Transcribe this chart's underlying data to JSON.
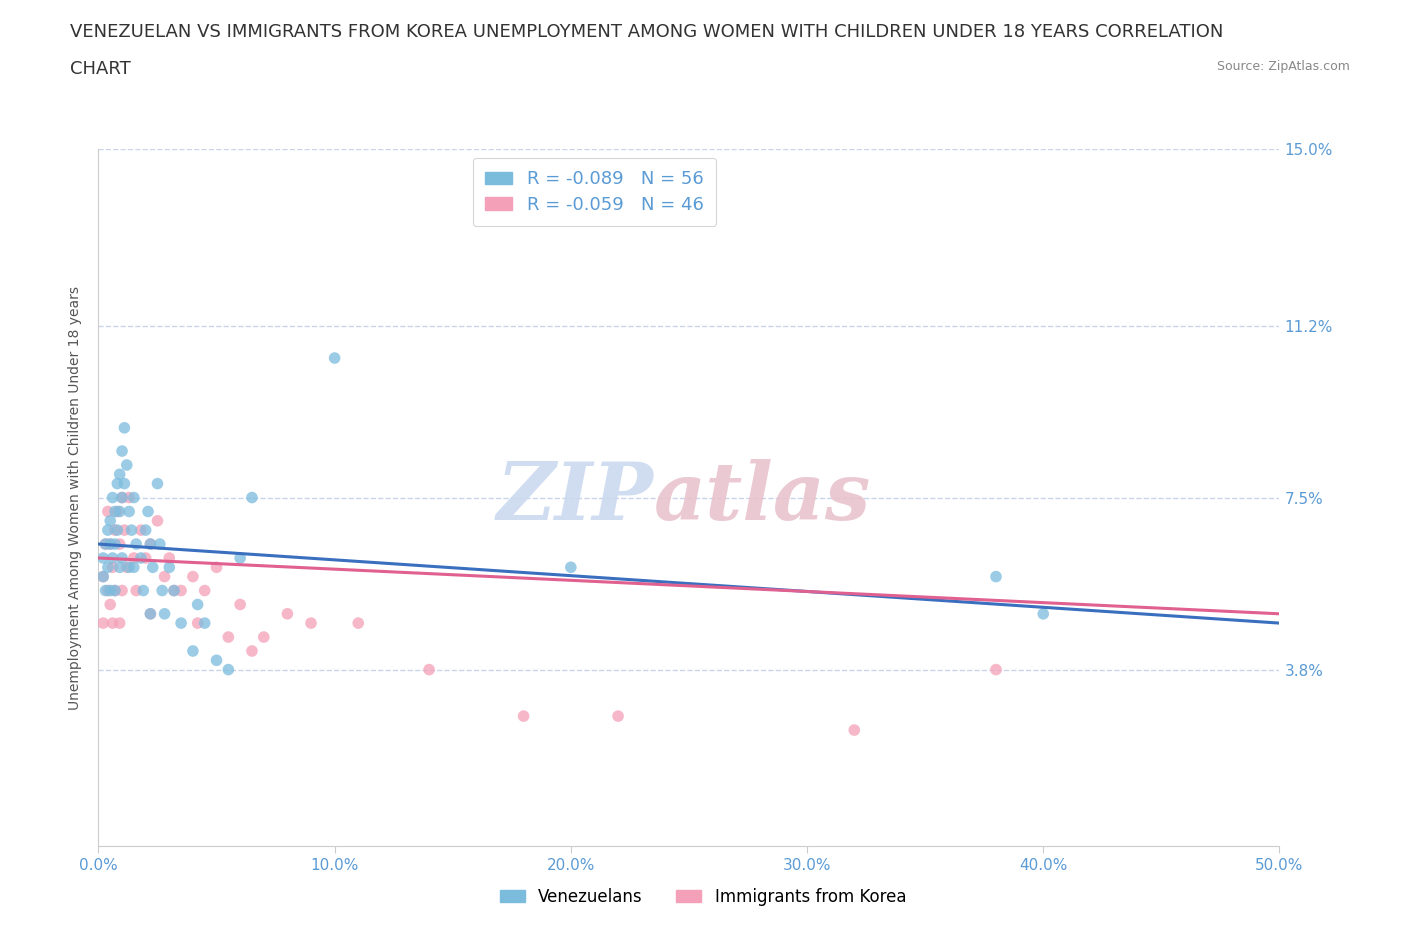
{
  "title_line1": "VENEZUELAN VS IMMIGRANTS FROM KOREA UNEMPLOYMENT AMONG WOMEN WITH CHILDREN UNDER 18 YEARS CORRELATION",
  "title_line2": "CHART",
  "source": "Source: ZipAtlas.com",
  "ylabel": "Unemployment Among Women with Children Under 18 years",
  "xlim": [
    0.0,
    0.5
  ],
  "ylim": [
    0.0,
    0.15
  ],
  "xticks": [
    0.0,
    0.1,
    0.2,
    0.3,
    0.4,
    0.5
  ],
  "xtick_labels": [
    "0.0%",
    "10.0%",
    "20.0%",
    "30.0%",
    "40.0%",
    "50.0%"
  ],
  "ytick_labels": [
    "3.8%",
    "7.5%",
    "11.2%",
    "15.0%"
  ],
  "ytick_values": [
    0.038,
    0.075,
    0.112,
    0.15
  ],
  "color_venezuelan": "#7bbcdd",
  "color_korea": "#f4a0b8",
  "color_trendline_venezuelan": "#3a6fbf",
  "color_trendline_korea": "#e06090",
  "color_gridline": "#c8d4e8",
  "legend_venezuelan": "R = -0.089   N = 56",
  "legend_korea": "R = -0.059   N = 46",
  "legend_label_venezuelan": "Venezuelans",
  "legend_label_korea": "Immigrants from Korea",
  "venezuelan_x": [
    0.002,
    0.002,
    0.003,
    0.003,
    0.004,
    0.004,
    0.005,
    0.005,
    0.005,
    0.006,
    0.006,
    0.007,
    0.007,
    0.007,
    0.008,
    0.008,
    0.009,
    0.009,
    0.009,
    0.01,
    0.01,
    0.01,
    0.011,
    0.011,
    0.012,
    0.013,
    0.013,
    0.014,
    0.015,
    0.015,
    0.016,
    0.018,
    0.019,
    0.02,
    0.021,
    0.022,
    0.022,
    0.023,
    0.025,
    0.026,
    0.027,
    0.028,
    0.03,
    0.032,
    0.035,
    0.04,
    0.042,
    0.045,
    0.05,
    0.055,
    0.06,
    0.065,
    0.1,
    0.2,
    0.38,
    0.4
  ],
  "venezuelan_y": [
    0.062,
    0.058,
    0.065,
    0.055,
    0.068,
    0.06,
    0.07,
    0.065,
    0.055,
    0.075,
    0.062,
    0.072,
    0.065,
    0.055,
    0.078,
    0.068,
    0.08,
    0.072,
    0.06,
    0.085,
    0.075,
    0.062,
    0.09,
    0.078,
    0.082,
    0.072,
    0.06,
    0.068,
    0.075,
    0.06,
    0.065,
    0.062,
    0.055,
    0.068,
    0.072,
    0.065,
    0.05,
    0.06,
    0.078,
    0.065,
    0.055,
    0.05,
    0.06,
    0.055,
    0.048,
    0.042,
    0.052,
    0.048,
    0.04,
    0.038,
    0.062,
    0.075,
    0.105,
    0.06,
    0.058,
    0.05
  ],
  "korea_x": [
    0.002,
    0.002,
    0.003,
    0.004,
    0.004,
    0.005,
    0.005,
    0.006,
    0.006,
    0.007,
    0.007,
    0.008,
    0.009,
    0.009,
    0.01,
    0.01,
    0.011,
    0.012,
    0.013,
    0.015,
    0.016,
    0.018,
    0.02,
    0.022,
    0.022,
    0.025,
    0.028,
    0.03,
    0.032,
    0.035,
    0.04,
    0.042,
    0.045,
    0.05,
    0.055,
    0.06,
    0.065,
    0.07,
    0.08,
    0.09,
    0.11,
    0.14,
    0.18,
    0.22,
    0.32,
    0.38
  ],
  "korea_y": [
    0.058,
    0.048,
    0.065,
    0.072,
    0.055,
    0.065,
    0.052,
    0.06,
    0.048,
    0.068,
    0.055,
    0.072,
    0.065,
    0.048,
    0.075,
    0.055,
    0.068,
    0.06,
    0.075,
    0.062,
    0.055,
    0.068,
    0.062,
    0.065,
    0.05,
    0.07,
    0.058,
    0.062,
    0.055,
    0.055,
    0.058,
    0.048,
    0.055,
    0.06,
    0.045,
    0.052,
    0.042,
    0.045,
    0.05,
    0.048,
    0.048,
    0.038,
    0.028,
    0.028,
    0.025,
    0.038
  ],
  "background_color": "#ffffff",
  "title_fontsize": 13,
  "axis_label_fontsize": 10,
  "tick_label_fontsize": 11,
  "tick_label_color": "#5b9bd5",
  "trendline_v_x0": 0.0,
  "trendline_v_y0": 0.065,
  "trendline_v_x1": 0.5,
  "trendline_v_y1": 0.048,
  "trendline_k_x0": 0.0,
  "trendline_k_y0": 0.062,
  "trendline_k_x1": 0.5,
  "trendline_k_y1": 0.05
}
